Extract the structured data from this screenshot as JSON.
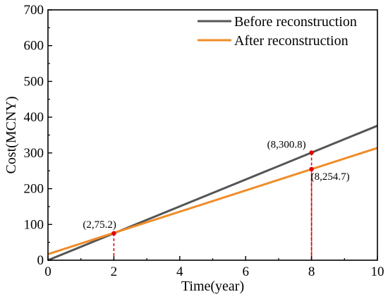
{
  "chart_data": {
    "type": "line",
    "xlabel": "Time(year)",
    "ylabel": "Cost(MCNY)",
    "xlim": [
      0,
      10
    ],
    "ylim": [
      0,
      700
    ],
    "xticks": [
      "0",
      "2",
      "4",
      "6",
      "8",
      "10"
    ],
    "yticks": [
      "0",
      "100",
      "200",
      "300",
      "400",
      "500",
      "600",
      "700"
    ],
    "grid": false,
    "legend_position": "top-right",
    "series": [
      {
        "name": "Before reconstruction",
        "color": "#555555",
        "x": [
          0,
          10
        ],
        "y": [
          0,
          376
        ]
      },
      {
        "name": "After reconstruction",
        "color": "#f08c28",
        "x": [
          0,
          10
        ],
        "y": [
          17,
          314
        ]
      }
    ],
    "annotations": [
      {
        "label": "(2,75.2)",
        "x": 2,
        "y": 75.2
      },
      {
        "label": "(8,300.8)",
        "x": 8,
        "y": 300.8
      },
      {
        "label": "(8,254.7)",
        "x": 8,
        "y": 254.7
      }
    ]
  }
}
